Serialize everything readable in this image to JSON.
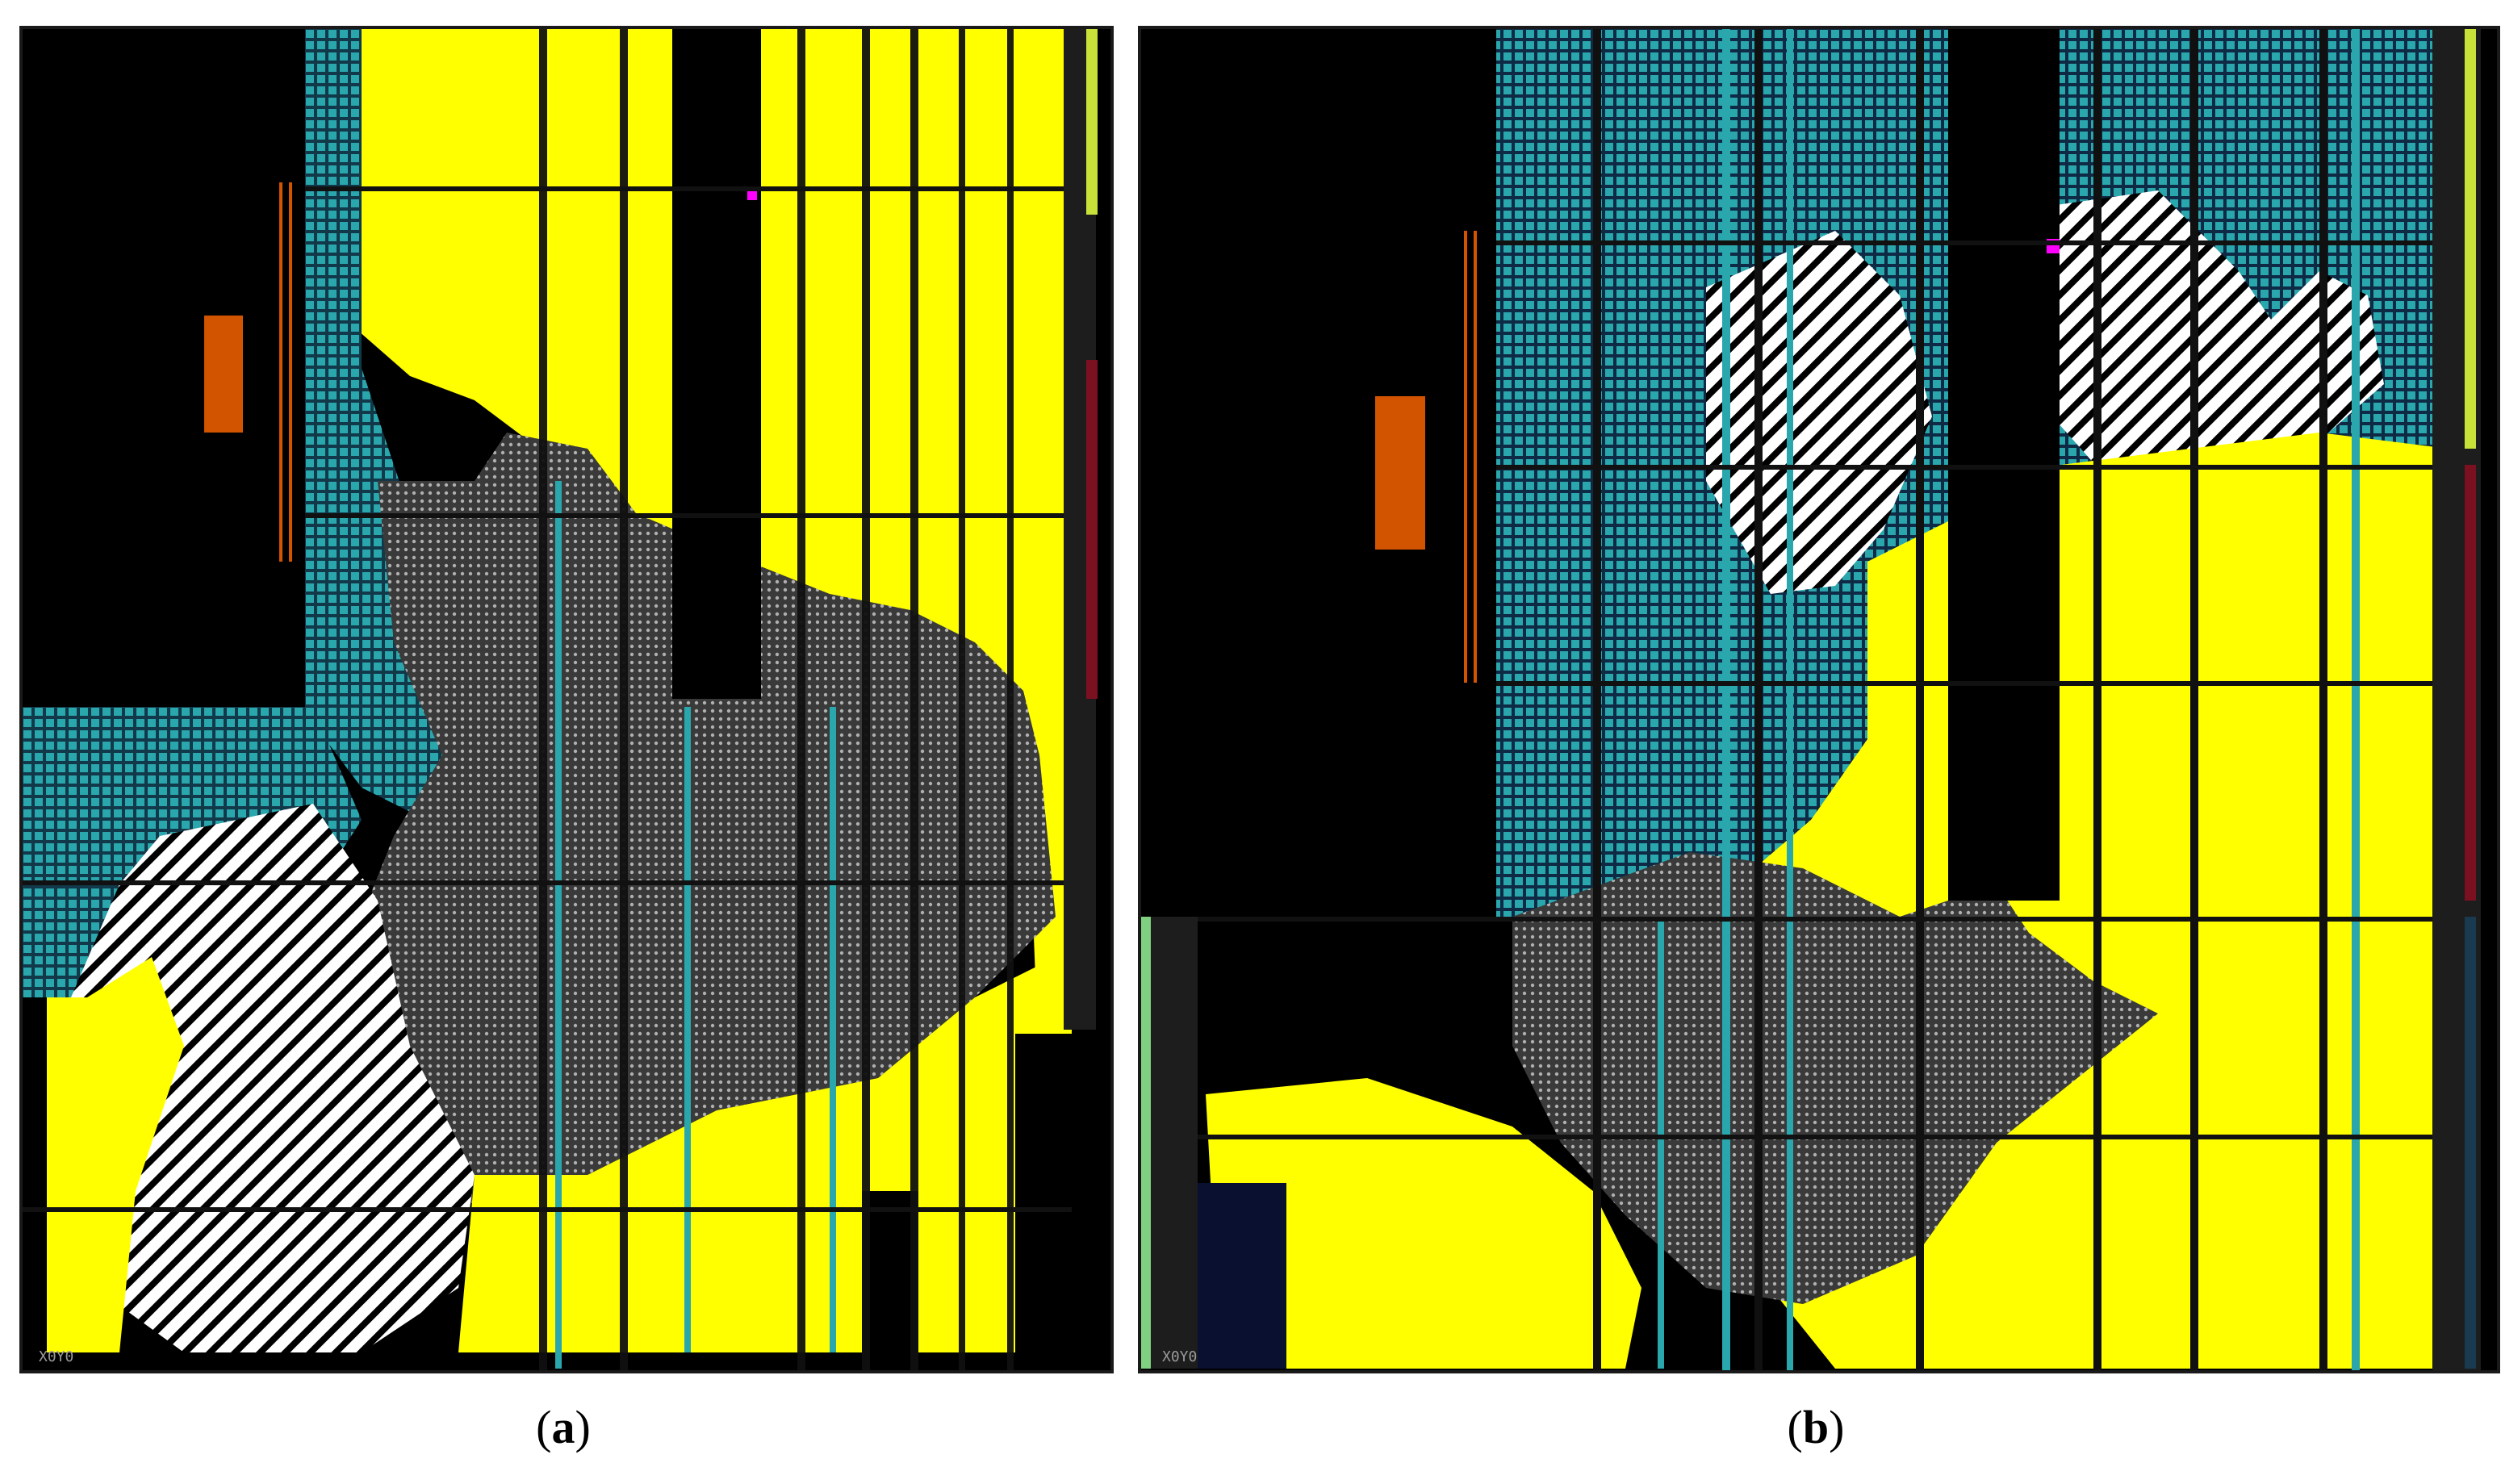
{
  "panels": [
    {
      "id": "a",
      "caption_open": "(",
      "caption_letter": "a",
      "caption_close": ")",
      "corner_label": "X0Y0"
    },
    {
      "id": "b",
      "caption_open": "(",
      "caption_letter": "b",
      "caption_close": ")",
      "corner_label": "X0Y0"
    }
  ],
  "colors": {
    "background": "#000000",
    "teal": "#2aa6ad",
    "yellow": "#ffff00",
    "grey_dots": "#8c8c8c",
    "orange": "#d35400",
    "magenta": "#ff00ff",
    "hatch": "#ffffff",
    "green": "#1fbf3a",
    "dark_navy": "#0a1030"
  },
  "icons": [
    "floorplan-panel-a",
    "floorplan-panel-b"
  ]
}
